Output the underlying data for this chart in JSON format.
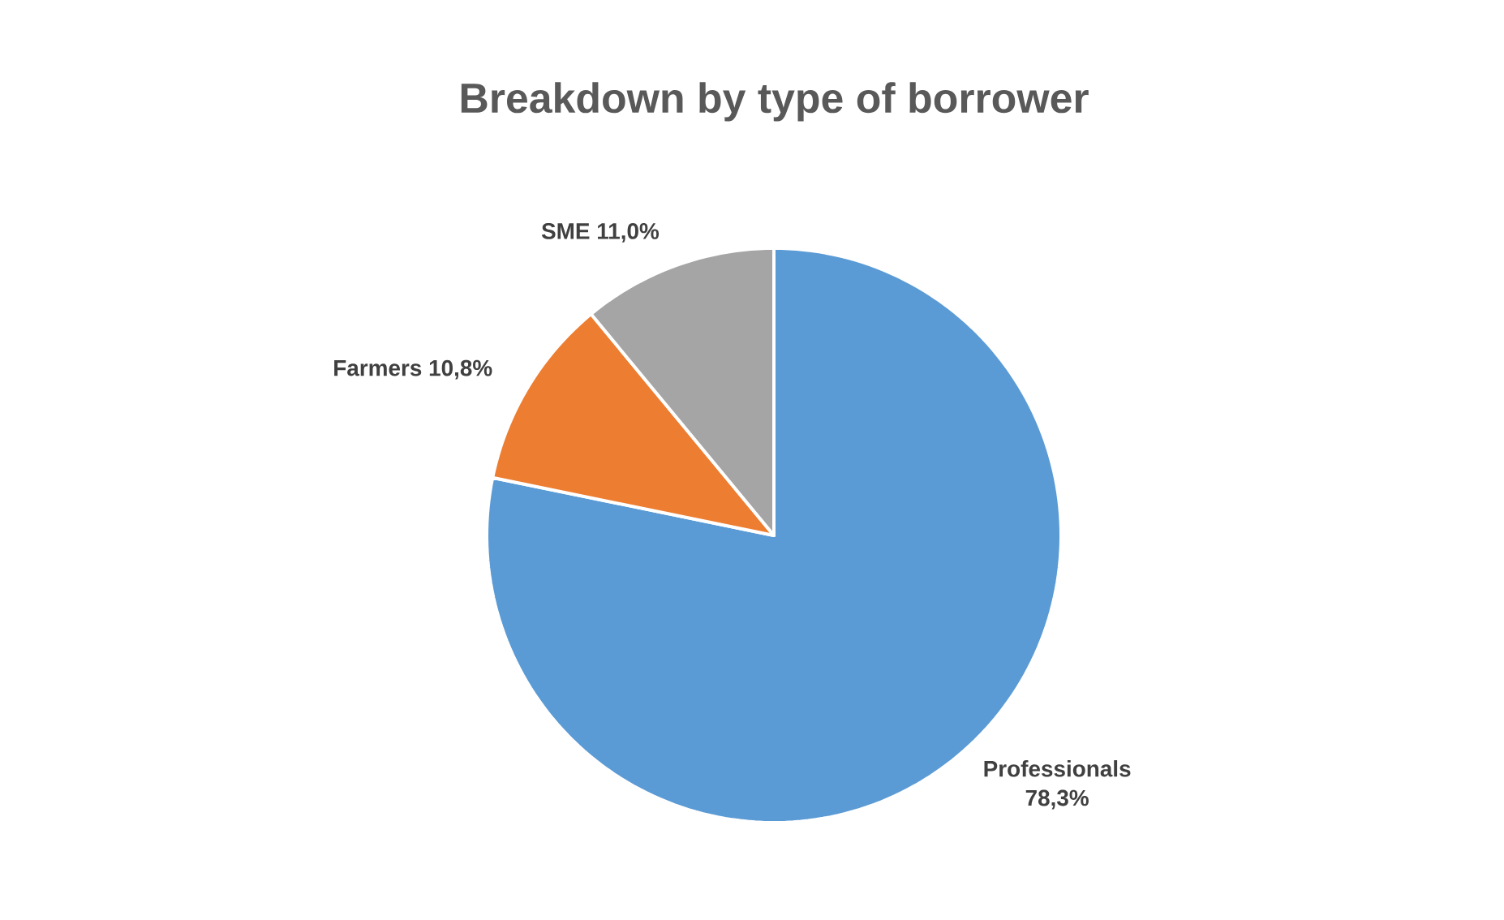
{
  "chart_data": {
    "type": "pie",
    "title": "Breakdown by type of borrower",
    "categories": [
      "Professionals",
      "Farmers",
      "SME"
    ],
    "values": [
      78.3,
      10.8,
      11.0
    ],
    "value_labels": [
      "78,3%",
      "10,8%",
      "11,0%"
    ],
    "colors": [
      "#5b9bd5",
      "#ed7d31",
      "#a5a5a5"
    ]
  }
}
